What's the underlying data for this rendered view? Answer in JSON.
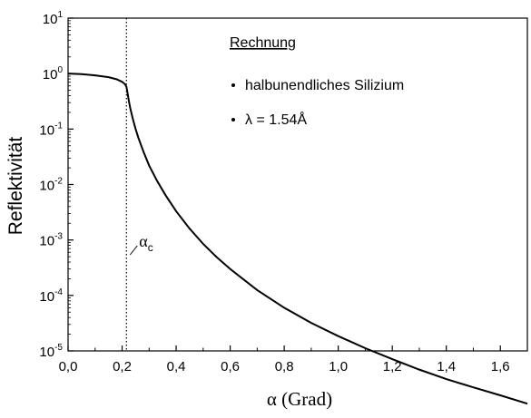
{
  "chart_data": {
    "type": "line",
    "xlabel": "α (Grad)",
    "ylabel": "Reflektivität",
    "xlim": [
      0,
      1.7
    ],
    "ylim_exponent": [
      -5,
      1
    ],
    "y_scale": "log",
    "x_ticks": [
      {
        "value": 0.0,
        "label": "0,0"
      },
      {
        "value": 0.2,
        "label": "0,2"
      },
      {
        "value": 0.4,
        "label": "0,4"
      },
      {
        "value": 0.6,
        "label": "0,6"
      },
      {
        "value": 0.8,
        "label": "0,8"
      },
      {
        "value": 1.0,
        "label": "1,0"
      },
      {
        "value": 1.2,
        "label": "1,2"
      },
      {
        "value": 1.4,
        "label": "1,4"
      },
      {
        "value": 1.6,
        "label": "1,6"
      }
    ],
    "y_ticks": [
      {
        "exp": 1,
        "base": "10",
        "sup": "1"
      },
      {
        "exp": 0,
        "base": "10",
        "sup": "0"
      },
      {
        "exp": -1,
        "base": "10",
        "sup": "-1"
      },
      {
        "exp": -2,
        "base": "10",
        "sup": "-2"
      },
      {
        "exp": -3,
        "base": "10",
        "sup": "-3"
      },
      {
        "exp": -4,
        "base": "10",
        "sup": "-4"
      },
      {
        "exp": -5,
        "base": "10",
        "sup": "-5"
      }
    ],
    "series": [
      {
        "x": [
          0.0,
          0.05,
          0.1,
          0.15,
          0.18,
          0.2,
          0.21,
          0.216,
          0.22,
          0.225,
          0.23,
          0.24,
          0.25,
          0.26,
          0.28,
          0.3,
          0.33,
          0.36,
          0.4,
          0.45,
          0.5,
          0.55,
          0.6,
          0.7,
          0.8,
          0.9,
          1.0,
          1.1,
          1.2,
          1.3,
          1.4,
          1.5,
          1.6,
          1.7
        ],
        "y": [
          1.0,
          0.98,
          0.93,
          0.86,
          0.79,
          0.71,
          0.65,
          0.58,
          0.45,
          0.32,
          0.24,
          0.15,
          0.1,
          0.07,
          0.038,
          0.022,
          0.0115,
          0.0065,
          0.0033,
          0.0016,
          0.00085,
          0.00049,
          0.0003,
          0.000125,
          6e-05,
          3.2e-05,
          1.85e-05,
          1.12e-05,
          7.1e-06,
          4.6e-06,
          3.1e-06,
          2.2e-06,
          1.58e-06,
          1.12e-06
        ]
      }
    ],
    "critical_angle": {
      "x": 0.216,
      "label": "α",
      "subscript": "c"
    },
    "legend_box": {
      "title": "Rechnung",
      "items": [
        "halbunendliches Silizium",
        "λ = 1.54Å"
      ]
    }
  }
}
